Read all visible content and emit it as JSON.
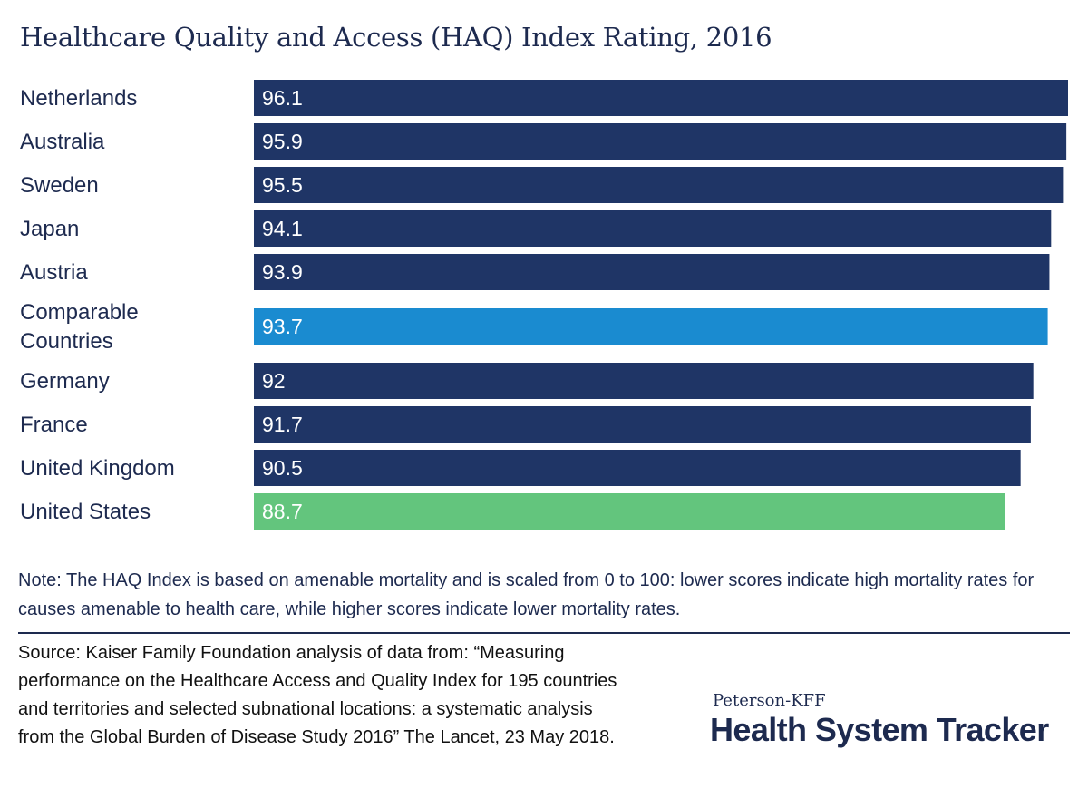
{
  "chart_data": {
    "type": "bar",
    "orientation": "horizontal",
    "title": "Healthcare Quality and Access (HAQ) Index Rating, 2016",
    "categories": [
      "Netherlands",
      "Australia",
      "Sweden",
      "Japan",
      "Austria",
      "Comparable Countries",
      "Germany",
      "France",
      "United Kingdom",
      "United States"
    ],
    "category_lines": [
      [
        "Netherlands"
      ],
      [
        "Australia"
      ],
      [
        "Sweden"
      ],
      [
        "Japan"
      ],
      [
        "Austria"
      ],
      [
        "Comparable",
        "Countries"
      ],
      [
        "Germany"
      ],
      [
        "France"
      ],
      [
        "United Kingdom"
      ],
      [
        "United States"
      ]
    ],
    "values": [
      96.1,
      95.9,
      95.5,
      94.1,
      93.9,
      93.7,
      92,
      91.7,
      90.5,
      88.7
    ],
    "value_labels": [
      "96.1",
      "95.9",
      "95.5",
      "94.1",
      "93.9",
      "93.7",
      "92",
      "91.7",
      "90.5",
      "88.7"
    ],
    "bar_colors": [
      "#1f3566",
      "#1f3566",
      "#1f3566",
      "#1f3566",
      "#1f3566",
      "#1a8bd0",
      "#1f3566",
      "#1f3566",
      "#1f3566",
      "#63c57d"
    ],
    "xlim": [
      0,
      96.1
    ],
    "xlabel": "",
    "ylabel": "",
    "grid": false
  },
  "note": "Note: The HAQ Index is based on amenable mortality and is scaled from 0 to 100: lower scores indicate high mortality rates for causes amenable to health care, while higher scores indicate lower mortality rates.",
  "source": "Source: Kaiser Family Foundation analysis of data from: “Measuring performance on the Healthcare Access and Quality Index for 195 countries and territories and selected subnational locations: a systematic analysis from the Global Burden of Disease Study 2016” The Lancet, 23 May 2018.",
  "logo": {
    "subtitle": "Peterson-KFF",
    "name": "Health System Tracker"
  },
  "colors": {
    "text": "#1d2a4f",
    "bar_default": "#1f3566",
    "bar_highlight": "#1a8bd0",
    "bar_us": "#63c57d"
  }
}
